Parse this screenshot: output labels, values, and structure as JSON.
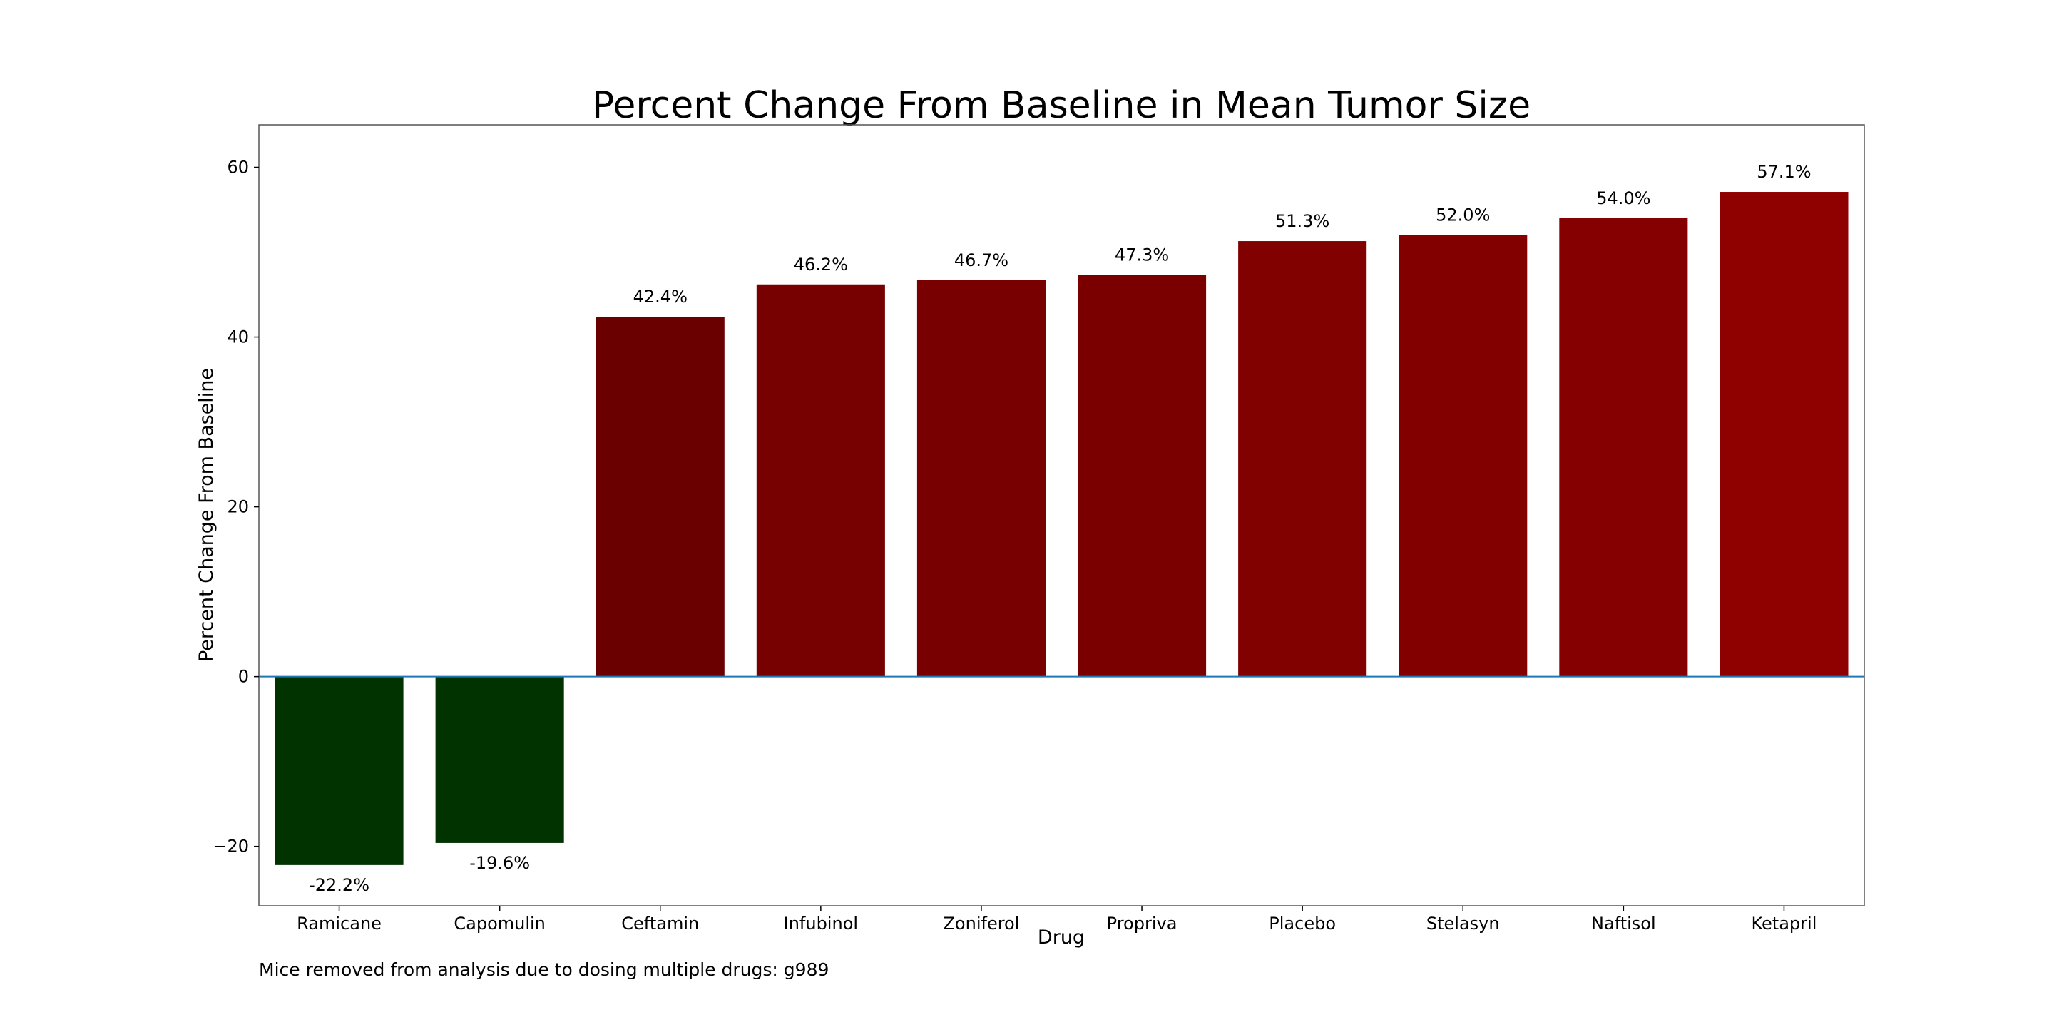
{
  "chart_data": {
    "type": "bar",
    "title": "Percent Change From Baseline in Mean Tumor Size",
    "xlabel": "Drug",
    "ylabel": "Percent Change From Baseline",
    "ylim": [
      -27,
      65
    ],
    "yticks": [
      -20,
      0,
      20,
      40,
      60
    ],
    "categories": [
      "Ramicane",
      "Capomulin",
      "Ceftamin",
      "Infubinol",
      "Zoniferol",
      "Propriva",
      "Placebo",
      "Stelasyn",
      "Naftisol",
      "Ketapril"
    ],
    "values": [
      -22.2,
      -19.6,
      42.4,
      46.2,
      46.7,
      47.3,
      51.3,
      52.0,
      54.0,
      57.1
    ],
    "value_labels": [
      "-22.2%",
      "-19.6%",
      "42.4%",
      "46.2%",
      "46.7%",
      "47.3%",
      "51.3%",
      "52.0%",
      "54.0%",
      "57.1%"
    ],
    "bar_colors": [
      "#003300",
      "#003300",
      "#6b0000",
      "#770000",
      "#790000",
      "#7a0000",
      "#810000",
      "#820000",
      "#850000",
      "#8f0000"
    ],
    "zero_line_color": "#1f77b4",
    "grid": false,
    "legend": "none"
  },
  "footnote": "Mice removed from analysis due to dosing multiple drugs: g989"
}
